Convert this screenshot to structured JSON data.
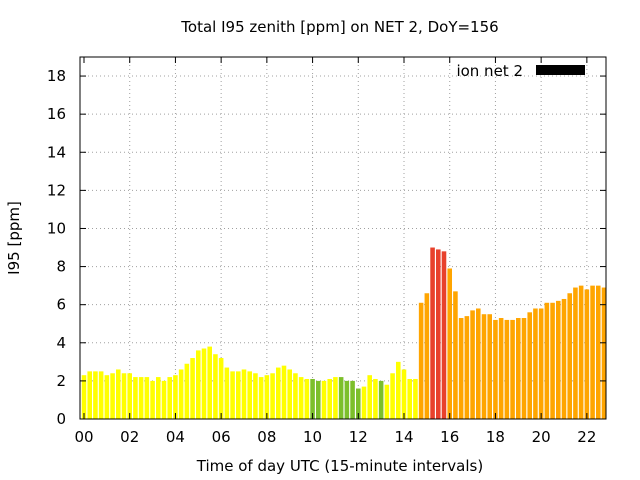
{
  "chart_data": {
    "type": "bar",
    "title": "Total I95 zenith [ppm] on NET 2, DoY=156",
    "xlabel": "Time of day UTC (15-minute intervals)",
    "ylabel": "I95 [ppm]",
    "xlim": [
      0,
      22.75
    ],
    "ylim": [
      0,
      19
    ],
    "x_ticks": [
      {
        "value": 0,
        "label": "00"
      },
      {
        "value": 2,
        "label": "02"
      },
      {
        "value": 4,
        "label": "04"
      },
      {
        "value": 6,
        "label": "06"
      },
      {
        "value": 8,
        "label": "08"
      },
      {
        "value": 10,
        "label": "10"
      },
      {
        "value": 12,
        "label": "12"
      },
      {
        "value": 14,
        "label": "14"
      },
      {
        "value": 16,
        "label": "16"
      },
      {
        "value": 18,
        "label": "18"
      },
      {
        "value": 20,
        "label": "20"
      },
      {
        "value": 22,
        "label": "22"
      }
    ],
    "y_ticks": [
      0,
      2,
      4,
      6,
      8,
      10,
      12,
      14,
      16,
      18
    ],
    "grid": true,
    "legend": {
      "label": "ion net 2",
      "color": "#000000",
      "placement": "top-right"
    },
    "colors": {
      "yellow": "#ffff00",
      "green": "#7cbf2b",
      "orange": "#ffa500",
      "red": "#e8412c"
    },
    "series": [
      {
        "x": [
          0,
          0.25,
          0.5,
          0.75,
          1,
          1.25,
          1.5,
          1.75,
          2,
          2.25,
          2.5,
          2.75,
          3,
          3.25,
          3.5,
          3.75,
          4,
          4.25,
          4.5,
          4.75,
          5,
          5.25,
          5.5,
          5.75,
          6,
          6.25,
          6.5,
          6.75,
          7,
          7.25,
          7.5,
          7.75,
          8,
          8.25,
          8.5,
          8.75,
          9,
          9.25,
          9.5,
          9.75,
          10,
          10.25,
          10.5,
          10.75,
          11,
          11.25,
          11.5,
          11.75,
          12,
          12.25,
          12.5,
          12.75,
          13,
          13.25,
          13.5,
          13.75,
          14,
          14.25,
          14.5,
          14.75,
          15,
          15.25,
          15.5,
          15.75,
          16,
          16.25,
          16.5,
          16.75,
          17,
          17.25,
          17.5,
          17.75,
          18,
          18.25,
          18.5,
          18.75,
          19,
          19.25,
          19.5,
          19.75,
          20,
          20.25,
          20.5,
          20.75,
          21,
          21.25,
          21.5,
          21.75,
          22,
          22.25,
          22.5,
          22.75
        ],
        "values": [
          2.3,
          2.5,
          2.5,
          2.5,
          2.3,
          2.4,
          2.6,
          2.4,
          2.4,
          2.2,
          2.2,
          2.2,
          2.0,
          2.2,
          2.0,
          2.2,
          2.3,
          2.6,
          2.9,
          3.2,
          3.6,
          3.7,
          3.8,
          3.4,
          3.2,
          2.7,
          2.5,
          2.5,
          2.6,
          2.5,
          2.4,
          2.2,
          2.3,
          2.4,
          2.7,
          2.8,
          2.6,
          2.4,
          2.2,
          2.1,
          2.1,
          2.0,
          2.0,
          2.1,
          2.2,
          2.2,
          2.0,
          2.0,
          1.6,
          1.7,
          2.3,
          2.1,
          2.0,
          1.8,
          2.4,
          3.0,
          2.6,
          2.1,
          2.1,
          6.1,
          6.6,
          9.0,
          8.9,
          8.8,
          7.9,
          6.7,
          5.3,
          5.4,
          5.7,
          5.8,
          5.5,
          5.5,
          5.2,
          5.3,
          5.2,
          5.2,
          5.3,
          5.3,
          5.6,
          5.8,
          5.8,
          6.1,
          6.1,
          6.2,
          6.3,
          6.6,
          6.9,
          7.0,
          6.8,
          7.0,
          7.0,
          6.9
        ],
        "colors": [
          "yellow",
          "yellow",
          "yellow",
          "yellow",
          "yellow",
          "yellow",
          "yellow",
          "yellow",
          "yellow",
          "yellow",
          "yellow",
          "yellow",
          "yellow",
          "yellow",
          "yellow",
          "yellow",
          "yellow",
          "yellow",
          "yellow",
          "yellow",
          "yellow",
          "yellow",
          "yellow",
          "yellow",
          "yellow",
          "yellow",
          "yellow",
          "yellow",
          "yellow",
          "yellow",
          "yellow",
          "yellow",
          "yellow",
          "yellow",
          "yellow",
          "yellow",
          "yellow",
          "yellow",
          "yellow",
          "yellow",
          "green",
          "green",
          "yellow",
          "yellow",
          "yellow",
          "green",
          "green",
          "green",
          "green",
          "yellow",
          "yellow",
          "yellow",
          "green",
          "yellow",
          "yellow",
          "yellow",
          "yellow",
          "yellow",
          "yellow",
          "orange",
          "orange",
          "red",
          "red",
          "red",
          "orange",
          "orange",
          "orange",
          "orange",
          "orange",
          "orange",
          "orange",
          "orange",
          "orange",
          "orange",
          "orange",
          "orange",
          "orange",
          "orange",
          "orange",
          "orange",
          "orange",
          "orange",
          "orange",
          "orange",
          "orange",
          "orange",
          "orange",
          "orange",
          "orange",
          "orange",
          "orange",
          "orange"
        ]
      }
    ]
  }
}
